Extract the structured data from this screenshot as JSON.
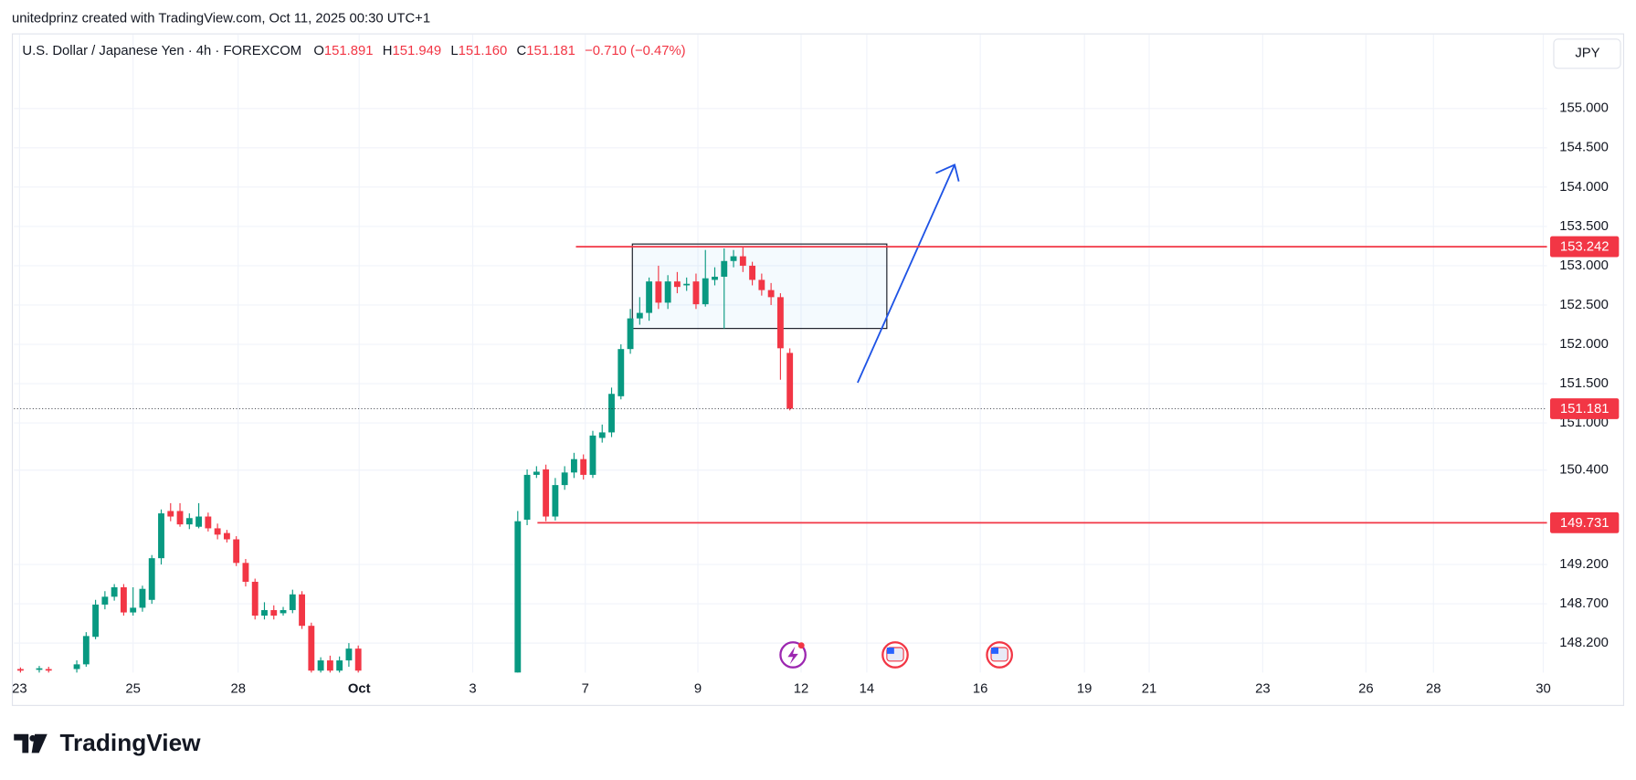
{
  "header": {
    "attribution": "unitedprinz created with TradingView.com, Oct 11, 2025 00:30 UTC+1"
  },
  "logo": "TradingView",
  "chart_data": {
    "type": "candlestick",
    "symbol": "U.S. Dollar / Japanese Yen · 4h · FOREXCOM",
    "ohlc": [
      {
        "key": "O",
        "value": "151.891"
      },
      {
        "key": "H",
        "value": "151.949"
      },
      {
        "key": "L",
        "value": "151.160"
      },
      {
        "key": "C",
        "value": "151.181"
      }
    ],
    "change": "−0.710 (−0.47%)",
    "currency": "JPY",
    "up_color": "#089981",
    "down_color": "#f23645",
    "x": [
      0,
      2,
      3,
      6,
      7,
      8,
      9,
      10,
      11,
      12,
      13,
      14,
      15,
      16,
      17,
      18,
      19,
      20,
      21,
      22,
      23,
      24,
      25,
      26,
      27,
      28,
      29,
      30,
      31,
      32,
      33,
      34,
      35,
      36,
      53,
      54,
      55,
      56,
      57,
      58,
      59,
      60,
      61,
      62,
      63,
      64,
      65,
      66,
      67,
      68,
      69,
      70,
      71,
      72,
      73,
      74,
      75,
      76,
      77,
      78,
      79,
      80,
      81,
      82
    ],
    "open": [
      147.87,
      147.86,
      147.87,
      147.87,
      147.93,
      148.28,
      148.69,
      148.79,
      148.91,
      148.59,
      148.65,
      148.75,
      149.28,
      149.88,
      149.88,
      149.71,
      149.68,
      149.81,
      149.66,
      149.6,
      149.52,
      149.22,
      148.98,
      148.55,
      148.62,
      148.58,
      148.62,
      148.82,
      148.42,
      147.85,
      147.98,
      147.85,
      147.98,
      148.13,
      147.825,
      149.77,
      150.34,
      150.41,
      149.81,
      150.21,
      150.37,
      150.54,
      150.34,
      150.81,
      150.88,
      151.34,
      151.94,
      152.33,
      152.4,
      152.8,
      152.53,
      152.8,
      152.75,
      152.8,
      152.51,
      152.82,
      152.86,
      153.06,
      153.12,
      153,
      152.82,
      152.69,
      152.6,
      151.891
    ],
    "high": [
      147.89,
      147.91,
      147.9,
      147.98,
      148.34,
      148.75,
      148.86,
      148.95,
      148.95,
      148.91,
      148.93,
      149.32,
      149.9,
      149.98,
      149.98,
      149.85,
      149.98,
      149.86,
      149.72,
      149.64,
      149.56,
      149.27,
      149.02,
      148.72,
      148.68,
      148.66,
      148.88,
      148.86,
      148.46,
      148.02,
      148.04,
      148.03,
      148.2,
      148.17,
      149.88,
      150.41,
      150.45,
      150.47,
      150.3,
      150.45,
      150.62,
      150.6,
      150.9,
      150.98,
      151.45,
      152,
      152.45,
      152.6,
      152.85,
      153,
      152.88,
      152.92,
      152.85,
      152.9,
      153.2,
      152.98,
      153.22,
      153.2,
      153.24,
      153.05,
      152.9,
      152.78,
      152.65,
      151.949
    ],
    "low": [
      147.82,
      147.82,
      147.82,
      147.82,
      147.9,
      148.25,
      148.63,
      148.74,
      148.55,
      148.55,
      148.6,
      148.7,
      149.2,
      149.75,
      149.68,
      149.65,
      149.66,
      149.62,
      149.52,
      149.48,
      149.18,
      148.92,
      148.5,
      148.5,
      148.5,
      148.55,
      148.58,
      148.38,
      147.8,
      147.8,
      147.8,
      147.8,
      147.9,
      147.8,
      147.8,
      149.7,
      150.3,
      149.75,
      149.76,
      150.15,
      150.3,
      150.28,
      150.3,
      150.75,
      150.82,
      151.3,
      151.88,
      152.25,
      152.3,
      152.45,
      152.45,
      152.65,
      152.68,
      152.45,
      152.48,
      152.75,
      152.2,
      152.98,
      152.92,
      152.75,
      152.62,
      152.5,
      151.55,
      151.16
    ],
    "close": [
      147.85,
      147.88,
      147.85,
      147.93,
      148.29,
      148.69,
      148.79,
      148.91,
      148.59,
      148.65,
      148.89,
      149.28,
      149.85,
      149.81,
      149.71,
      149.79,
      149.81,
      149.66,
      149.58,
      149.52,
      149.22,
      148.98,
      148.55,
      148.62,
      148.55,
      148.62,
      148.82,
      148.42,
      147.85,
      147.98,
      147.85,
      147.98,
      148.13,
      147.85,
      149.75,
      150.34,
      150.38,
      149.81,
      150.21,
      150.37,
      150.54,
      150.34,
      150.84,
      150.88,
      151.37,
      151.94,
      152.33,
      152.4,
      152.8,
      152.53,
      152.8,
      152.73,
      152.77,
      152.51,
      152.84,
      152.86,
      153.06,
      153.12,
      153,
      152.82,
      152.69,
      152.6,
      151.95,
      151.181
    ],
    "xlim": [
      -0.7,
      162.7
    ],
    "ylim": [
      147.825,
      155.942
    ],
    "xticks": [
      {
        "value": -0.1,
        "label": "23"
      },
      {
        "value": 12,
        "label": "25"
      },
      {
        "value": 23.2,
        "label": "28"
      },
      {
        "value": 36.1,
        "label": "Oct"
      },
      {
        "value": 48.2,
        "label": "3"
      },
      {
        "value": 60.2,
        "label": "7"
      },
      {
        "value": 72.2,
        "label": "9"
      },
      {
        "value": 83.2,
        "label": "12"
      },
      {
        "value": 90.2,
        "label": "14"
      },
      {
        "value": 102.3,
        "label": "16"
      },
      {
        "value": 113.4,
        "label": "19"
      },
      {
        "value": 120.3,
        "label": "21"
      },
      {
        "value": 132.4,
        "label": "23"
      },
      {
        "value": 143.4,
        "label": "26"
      },
      {
        "value": 150.6,
        "label": "28"
      },
      {
        "value": 162.3,
        "label": "30"
      }
    ],
    "yticks": [
      {
        "value": 155,
        "label": "155.000"
      },
      {
        "value": 154.5,
        "label": "154.500"
      },
      {
        "value": 154,
        "label": "154.000"
      },
      {
        "value": 153.5,
        "label": "153.500"
      },
      {
        "value": 153,
        "label": "153.000"
      },
      {
        "value": 152.5,
        "label": "152.500"
      },
      {
        "value": 152,
        "label": "152.000"
      },
      {
        "value": 151.5,
        "label": "151.500"
      },
      {
        "value": 151,
        "label": "151.000"
      },
      {
        "value": 150.4,
        "label": "150.400"
      },
      {
        "value": 149.2,
        "label": "149.200"
      },
      {
        "value": 148.7,
        "label": "148.700"
      },
      {
        "value": 148.2,
        "label": "148.200"
      }
    ],
    "grid": true,
    "levels": [
      {
        "value": 153.242,
        "x_start": 59.2,
        "color": "#f23645"
      },
      {
        "value": 149.731,
        "x_start": 55.1,
        "color": "#f23645"
      }
    ],
    "last_price": {
      "value": 151.181,
      "color": "#f23645"
    }
  }
}
